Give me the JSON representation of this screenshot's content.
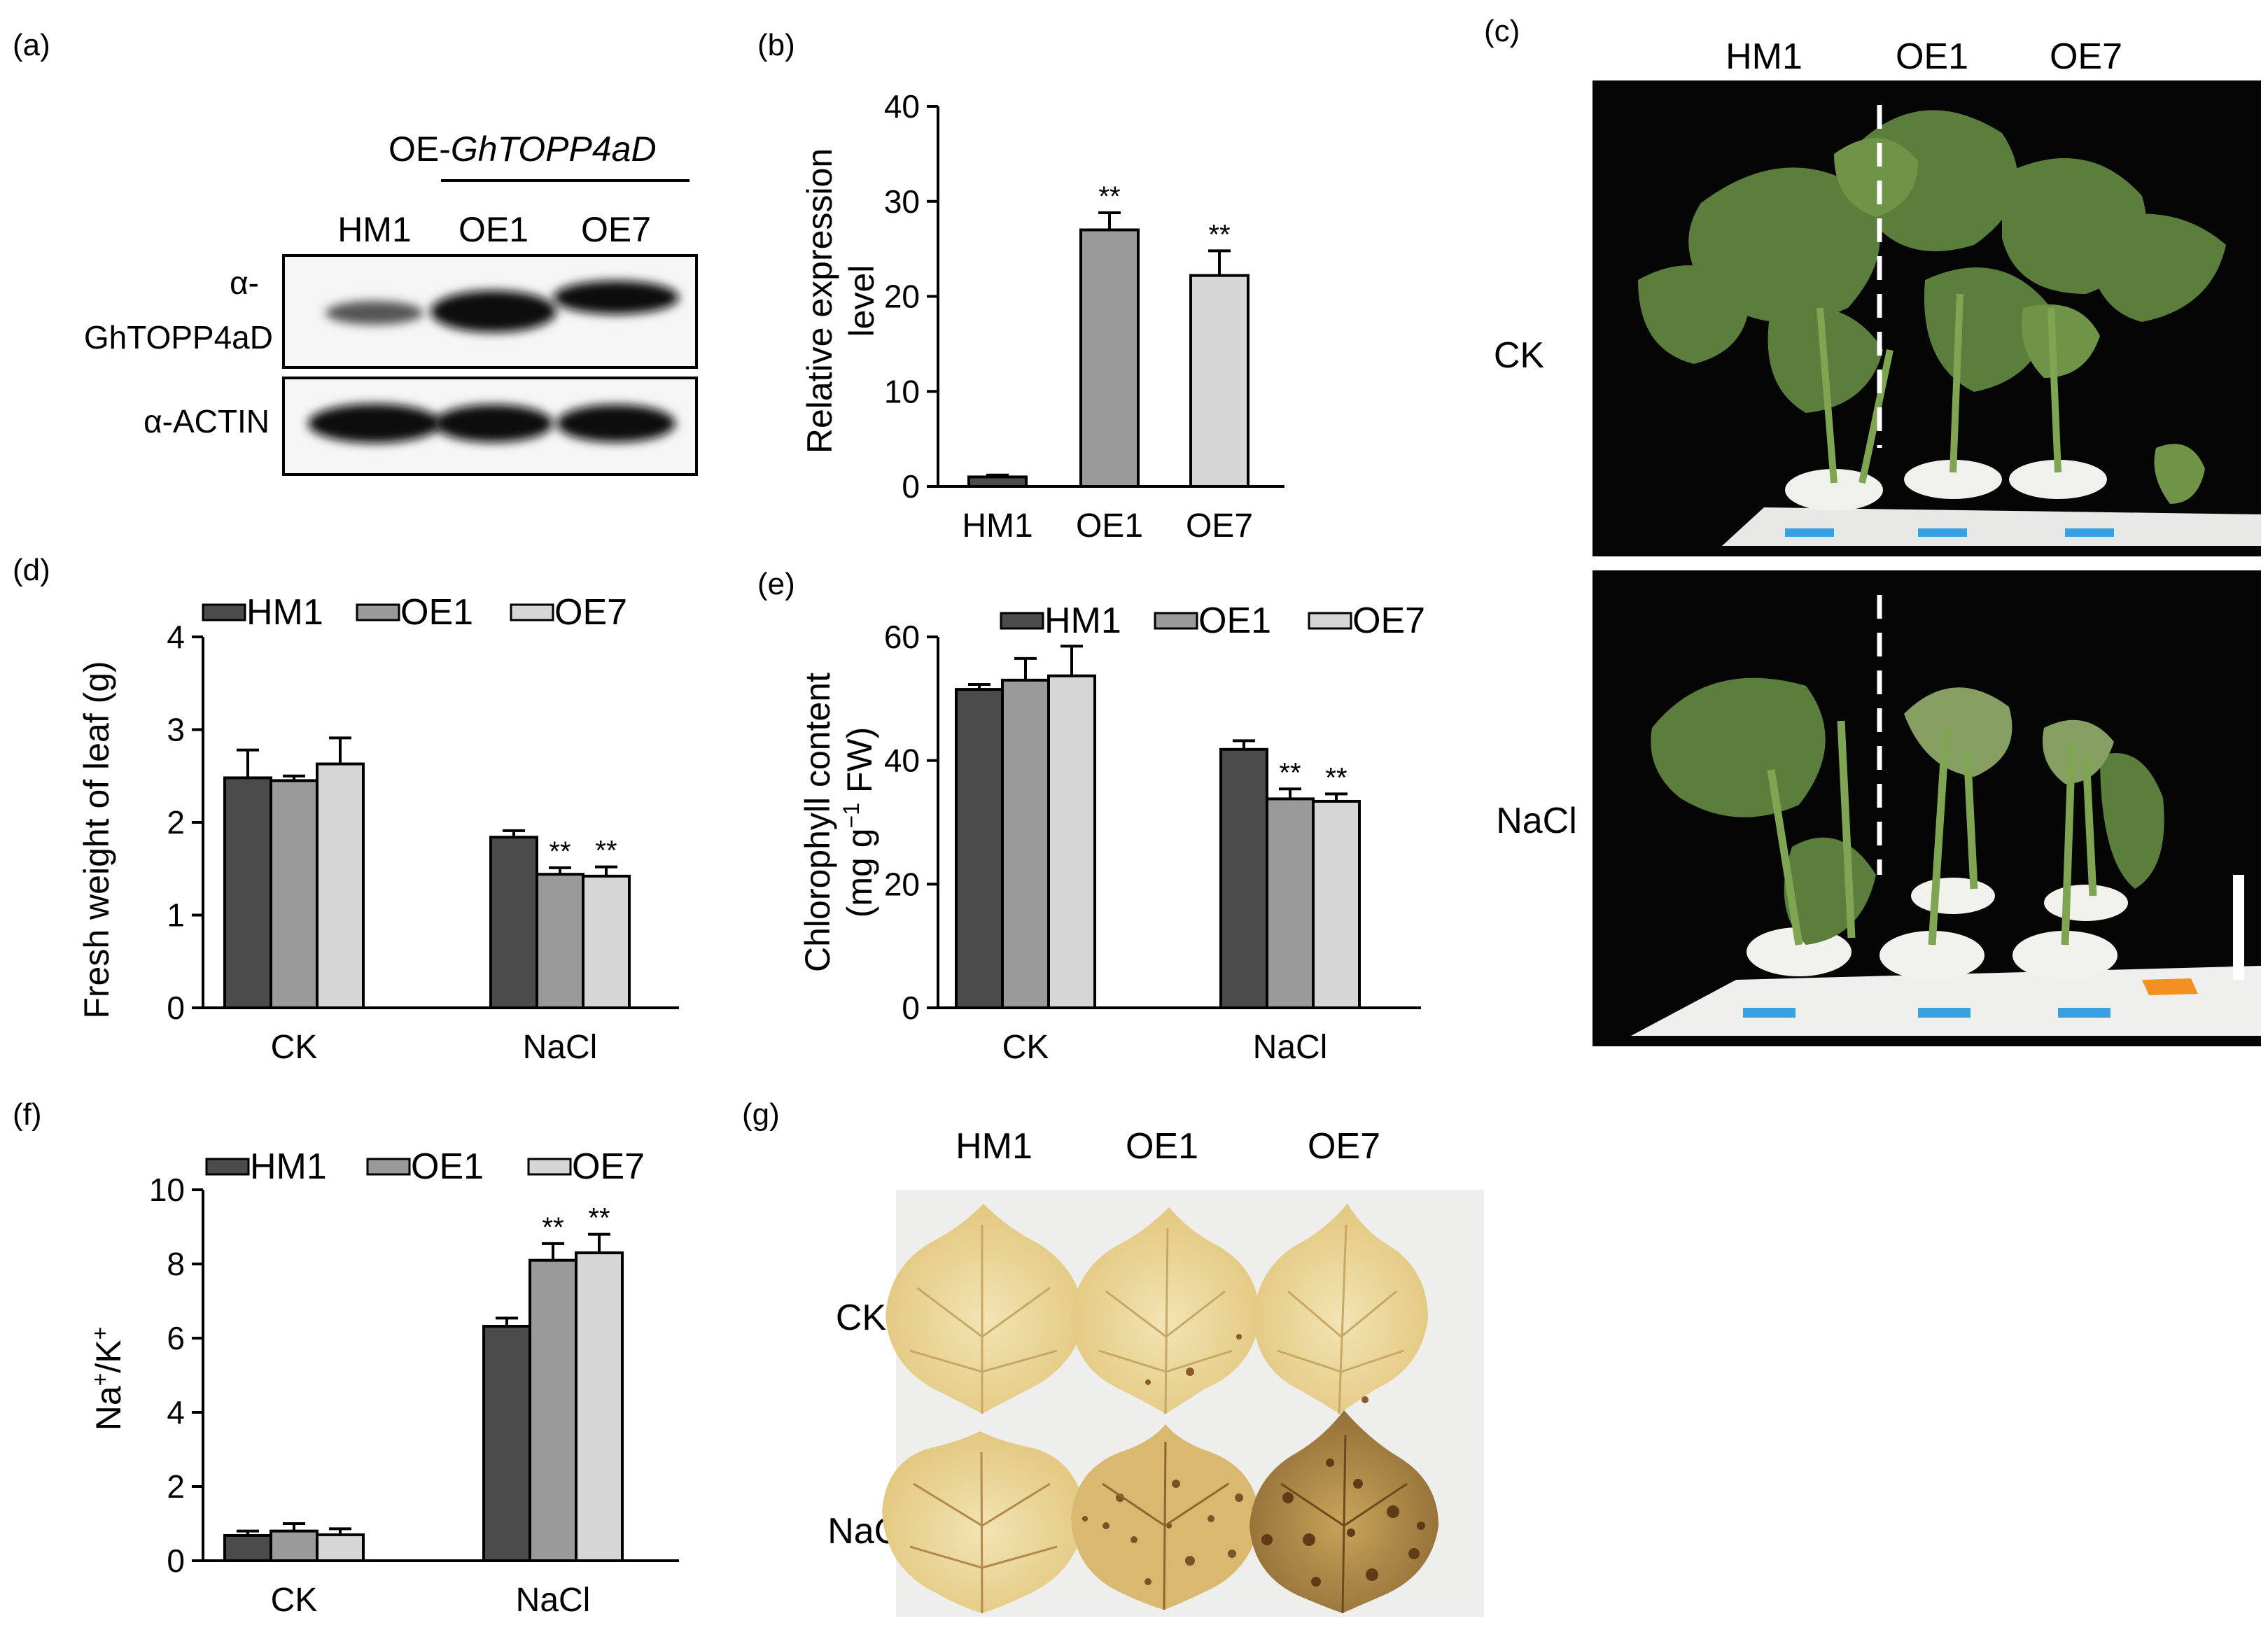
{
  "panel_labels": {
    "a": "(a)",
    "b": "(b)",
    "c": "(c)",
    "d": "(d)",
    "e": "(e)",
    "f": "(f)",
    "g": "(g)"
  },
  "colors": {
    "hm1": "#4b4b4b",
    "oe1": "#9a9a9a",
    "oe7": "#d6d6d6",
    "axis": "#000000"
  },
  "western_blot": {
    "group_prefix": "OE-",
    "group_gene": "GhTOPP4aD",
    "lanes": [
      "HM1",
      "OE1",
      "OE7"
    ],
    "row1_label_line1": "α-",
    "row1_label_line2": "GhTOPP4aD",
    "row2_label": "α-ACTIN"
  },
  "photo_c": {
    "column_labels": [
      "HM1",
      "OE1",
      "OE7"
    ],
    "row_labels": [
      "CK",
      "NaCl"
    ]
  },
  "photo_g": {
    "column_labels": [
      "HM1",
      "OE1",
      "OE7"
    ],
    "row_labels": [
      "CK",
      "NaCl"
    ]
  },
  "chart_data": [
    {
      "panel": "b",
      "type": "bar",
      "categories": [
        "HM1",
        "OE1",
        "OE7"
      ],
      "values": [
        1.0,
        27.0,
        22.2
      ],
      "errors": [
        0.2,
        1.8,
        2.6
      ],
      "significance": [
        "",
        "**",
        "**"
      ],
      "ylabel_line1": "Relative expression",
      "ylabel_line2": "level",
      "ylim": [
        0,
        40
      ],
      "yticks": [
        0,
        10,
        20,
        30,
        40
      ],
      "grid": false
    },
    {
      "panel": "d",
      "type": "bar",
      "categories": [
        "CK",
        "NaCl"
      ],
      "legend": [
        "HM1",
        "OE1",
        "OE7"
      ],
      "legend_position": "top",
      "series": [
        {
          "name": "HM1",
          "values": [
            2.48,
            1.84
          ],
          "errors": [
            0.3,
            0.07
          ],
          "significance": [
            "",
            ""
          ]
        },
        {
          "name": "OE1",
          "values": [
            2.45,
            1.44
          ],
          "errors": [
            0.05,
            0.07
          ],
          "significance": [
            "",
            "**"
          ]
        },
        {
          "name": "OE7",
          "values": [
            2.63,
            1.42
          ],
          "errors": [
            0.28,
            0.1
          ],
          "significance": [
            "",
            "**"
          ]
        }
      ],
      "ylabel": "Fresh weight of leaf (g)",
      "ylim": [
        0,
        4
      ],
      "yticks": [
        0,
        1,
        2,
        3,
        4
      ],
      "grid": false
    },
    {
      "panel": "e",
      "type": "bar",
      "categories": [
        "CK",
        "NaCl"
      ],
      "legend": [
        "HM1",
        "OE1",
        "OE7"
      ],
      "legend_position": "top",
      "series": [
        {
          "name": "HM1",
          "values": [
            51.5,
            41.8
          ],
          "errors": [
            0.8,
            1.4
          ],
          "significance": [
            "",
            ""
          ]
        },
        {
          "name": "OE1",
          "values": [
            53.0,
            33.8
          ],
          "errors": [
            3.5,
            1.6
          ],
          "significance": [
            "",
            "**"
          ]
        },
        {
          "name": "OE7",
          "values": [
            53.7,
            33.4
          ],
          "errors": [
            4.8,
            1.2
          ],
          "significance": [
            "",
            "**"
          ]
        }
      ],
      "ylabel_line1": "Chlorophyll content",
      "ylabel_line2_pre": "(mg g",
      "ylabel_line2_sup": "−1",
      "ylabel_line2_post": " FW)",
      "ylim": [
        0,
        60
      ],
      "yticks": [
        0,
        20,
        40,
        60
      ],
      "grid": false
    },
    {
      "panel": "f",
      "type": "bar",
      "categories": [
        "CK",
        "NaCl"
      ],
      "legend": [
        "HM1",
        "OE1",
        "OE7"
      ],
      "legend_position": "top",
      "series": [
        {
          "name": "HM1",
          "values": [
            0.68,
            6.32
          ],
          "errors": [
            0.12,
            0.22
          ],
          "significance": [
            "",
            ""
          ]
        },
        {
          "name": "OE1",
          "values": [
            0.8,
            8.1
          ],
          "errors": [
            0.2,
            0.45
          ],
          "significance": [
            "",
            "**"
          ]
        },
        {
          "name": "OE7",
          "values": [
            0.7,
            8.3
          ],
          "errors": [
            0.16,
            0.5
          ],
          "significance": [
            "",
            "**"
          ]
        }
      ],
      "ylabel_parts": [
        "Na",
        "+",
        "/K",
        "+"
      ],
      "ylim": [
        0,
        10
      ],
      "yticks": [
        0,
        2,
        4,
        6,
        8,
        10
      ],
      "grid": false
    }
  ]
}
